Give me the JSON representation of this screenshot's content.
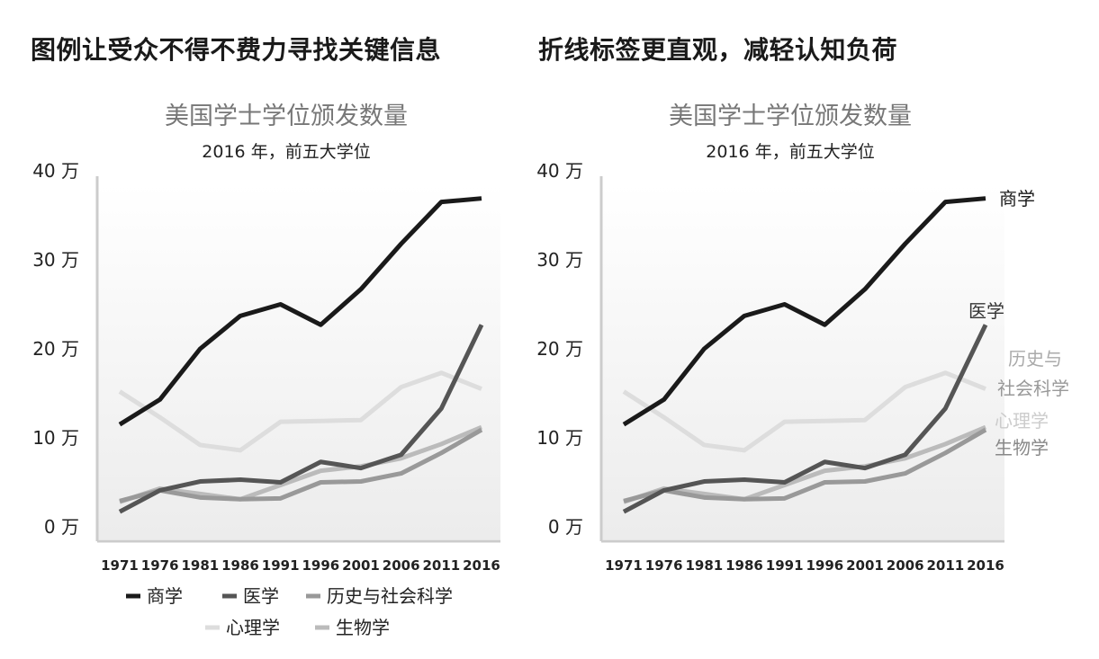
{
  "headline_left": "图例让受众不得不费力寻找关键信息",
  "headline_right": "折线标签更直观，减轻认知负荷",
  "chart_data": [
    {
      "type": "line",
      "title": "美国学士学位颁发数量",
      "subtitle": "2016 年，前五大学位",
      "y_ticks": [
        "0 万",
        "10 万",
        "20 万",
        "30 万",
        "40 万"
      ],
      "ylim": [
        0,
        40
      ],
      "x": [
        "1971",
        "1976",
        "1981",
        "1986",
        "1991",
        "1996",
        "2001",
        "2006",
        "2011",
        "2016"
      ],
      "legend": "bottom",
      "series": [
        {
          "name": "商学",
          "color": "#1a1a1a",
          "values": [
            11.5,
            14.3,
            20.0,
            23.7,
            25.0,
            22.7,
            26.7,
            31.8,
            36.5,
            36.9
          ]
        },
        {
          "name": "医学",
          "color": "#555555",
          "values": [
            1.7,
            4.1,
            5.1,
            5.3,
            5.0,
            7.3,
            6.6,
            8.1,
            13.3,
            22.7
          ]
        },
        {
          "name": "历史与社会科学",
          "color": "#999999",
          "values": [
            2.9,
            4.1,
            3.3,
            3.1,
            3.2,
            5.0,
            5.1,
            6.0,
            8.3,
            10.9
          ]
        },
        {
          "name": "心理学",
          "color": "#dddddd",
          "values": [
            15.2,
            12.3,
            9.2,
            8.6,
            11.8,
            11.9,
            12.0,
            15.7,
            17.3,
            15.5
          ]
        },
        {
          "name": "生物学",
          "color": "#bbbbbb",
          "values": [
            2.8,
            4.3,
            3.7,
            3.1,
            4.7,
            6.3,
            6.8,
            7.7,
            9.3,
            11.2
          ]
        }
      ]
    },
    {
      "type": "line",
      "title": "美国学士学位颁发数量",
      "subtitle": "2016 年，前五大学位",
      "y_ticks": [
        "0 万",
        "10 万",
        "20 万",
        "30 万",
        "40 万"
      ],
      "ylim": [
        0,
        40
      ],
      "x": [
        "1971",
        "1976",
        "1981",
        "1986",
        "1991",
        "1996",
        "2001",
        "2006",
        "2011",
        "2016"
      ],
      "legend": "none",
      "labels": [
        {
          "text": "商学",
          "color": "#1a1a1a"
        },
        {
          "text": "医学",
          "color": "#333333"
        },
        {
          "text": "历史与",
          "color": "#aaaaaa"
        },
        {
          "text": "社会科学",
          "color": "#999999"
        },
        {
          "text": "心理学",
          "color": "#cccccc"
        },
        {
          "text": "生物学",
          "color": "#888888"
        }
      ],
      "series": [
        {
          "name": "商学",
          "color": "#1a1a1a",
          "values": [
            11.5,
            14.3,
            20.0,
            23.7,
            25.0,
            22.7,
            26.7,
            31.8,
            36.5,
            36.9
          ]
        },
        {
          "name": "医学",
          "color": "#555555",
          "values": [
            1.7,
            4.1,
            5.1,
            5.3,
            5.0,
            7.3,
            6.6,
            8.1,
            13.3,
            22.7
          ]
        },
        {
          "name": "历史与社会科学",
          "color": "#999999",
          "values": [
            2.9,
            4.1,
            3.3,
            3.1,
            3.2,
            5.0,
            5.1,
            6.0,
            8.3,
            10.9
          ]
        },
        {
          "name": "心理学",
          "color": "#dddddd",
          "values": [
            15.2,
            12.3,
            9.2,
            8.6,
            11.8,
            11.9,
            12.0,
            15.7,
            17.3,
            15.5
          ]
        },
        {
          "name": "生物学",
          "color": "#bbbbbb",
          "values": [
            2.8,
            4.3,
            3.7,
            3.1,
            4.7,
            6.3,
            6.8,
            7.7,
            9.3,
            11.2
          ]
        }
      ]
    }
  ]
}
